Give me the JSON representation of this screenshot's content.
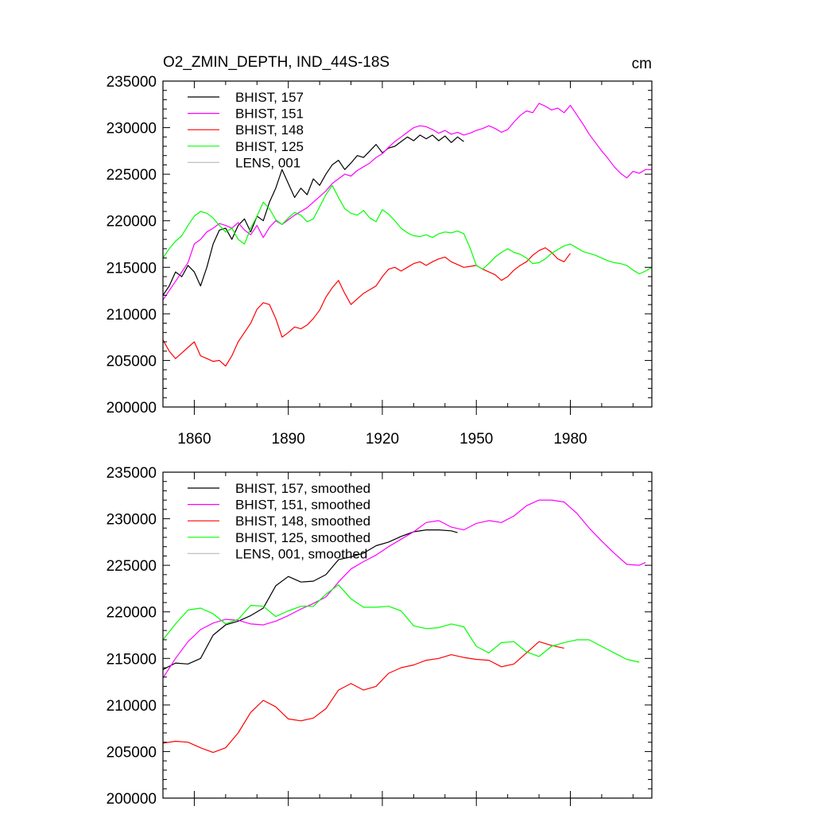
{
  "chart_data": [
    {
      "type": "line",
      "title": "O2_ZMIN_DEPTH, IND_44S-18S",
      "units": "cm",
      "xlim": [
        1850,
        2006
      ],
      "ylim": [
        200000,
        235000
      ],
      "xticks": [
        "1860",
        "1890",
        "1920",
        "1950",
        "1980"
      ],
      "yticks": [
        "235000",
        "230000",
        "225000",
        "220000",
        "215000",
        "210000",
        "205000",
        "200000"
      ],
      "grid": false,
      "legend_position": "top-left",
      "series": [
        {
          "name": "BHIST, 157",
          "color": "#000000",
          "x": [
            1850,
            1852,
            1854,
            1856,
            1858,
            1860,
            1862,
            1864,
            1866,
            1868,
            1870,
            1872,
            1874,
            1876,
            1878,
            1880,
            1882,
            1884,
            1886,
            1888,
            1890,
            1892,
            1894,
            1896,
            1898,
            1900,
            1902,
            1904,
            1906,
            1908,
            1910,
            1912,
            1914,
            1916,
            1918,
            1920,
            1922,
            1924,
            1926,
            1928,
            1930,
            1932,
            1934,
            1936,
            1938,
            1940,
            1942,
            1944,
            1946
          ],
          "y": [
            212000,
            213000,
            214500,
            214000,
            215200,
            214500,
            213000,
            215000,
            217500,
            219000,
            219200,
            218000,
            219500,
            220200,
            218800,
            220500,
            220000,
            222000,
            223500,
            225500,
            224000,
            222500,
            223500,
            222800,
            224500,
            223800,
            225000,
            226000,
            226500,
            225500,
            226200,
            227000,
            226800,
            227500,
            228200,
            227300,
            227800,
            228000,
            228500,
            229000,
            228600,
            229200,
            228800,
            229200,
            228600,
            229100,
            228400,
            229000,
            228500
          ]
        },
        {
          "name": "BHIST, 151",
          "color": "#ff00ff",
          "x": [
            1850,
            1852,
            1854,
            1856,
            1858,
            1860,
            1862,
            1864,
            1866,
            1868,
            1870,
            1872,
            1874,
            1876,
            1878,
            1880,
            1882,
            1884,
            1886,
            1888,
            1890,
            1892,
            1894,
            1896,
            1898,
            1900,
            1902,
            1904,
            1906,
            1908,
            1910,
            1912,
            1914,
            1916,
            1918,
            1920,
            1922,
            1924,
            1926,
            1928,
            1930,
            1932,
            1934,
            1936,
            1938,
            1940,
            1942,
            1944,
            1946,
            1948,
            1950,
            1952,
            1954,
            1956,
            1958,
            1960,
            1962,
            1964,
            1966,
            1968,
            1970,
            1972,
            1974,
            1976,
            1978,
            1980,
            1982,
            1984,
            1986,
            1988,
            1990,
            1992,
            1994,
            1996,
            1998,
            2000,
            2002,
            2004,
            2006
          ],
          "y": [
            211500,
            212500,
            213500,
            214500,
            215500,
            217500,
            218000,
            218800,
            219200,
            219700,
            219500,
            219200,
            219800,
            219000,
            218500,
            219500,
            218200,
            219300,
            220000,
            219600,
            220100,
            220600,
            221000,
            221400,
            222000,
            222600,
            223200,
            224000,
            224500,
            225000,
            224800,
            225400,
            225800,
            226200,
            226800,
            227200,
            227900,
            228500,
            229000,
            229500,
            230000,
            230200,
            230100,
            229800,
            229400,
            229700,
            229300,
            229500,
            229200,
            229400,
            229700,
            229900,
            230200,
            229900,
            229500,
            229800,
            230600,
            231300,
            231800,
            231600,
            232600,
            232300,
            231900,
            232100,
            231600,
            232400,
            231400,
            230400,
            229300,
            228400,
            227500,
            226700,
            225800,
            225100,
            224600,
            225300,
            225100,
            225500,
            225500
          ]
        },
        {
          "name": "BHIST, 148",
          "color": "#ff0000",
          "x": [
            1850,
            1852,
            1854,
            1856,
            1858,
            1860,
            1862,
            1864,
            1866,
            1868,
            1870,
            1872,
            1874,
            1876,
            1878,
            1880,
            1882,
            1884,
            1886,
            1888,
            1890,
            1892,
            1894,
            1896,
            1898,
            1900,
            1902,
            1904,
            1906,
            1908,
            1910,
            1912,
            1914,
            1916,
            1918,
            1920,
            1922,
            1924,
            1926,
            1928,
            1930,
            1932,
            1934,
            1936,
            1938,
            1940,
            1942,
            1944,
            1946,
            1948,
            1950,
            1952,
            1954,
            1956,
            1958,
            1960,
            1962,
            1964,
            1966,
            1968,
            1970,
            1972,
            1974,
            1976,
            1978,
            1980
          ],
          "y": [
            207200,
            206000,
            205200,
            205800,
            206400,
            207000,
            205500,
            205200,
            204900,
            205000,
            204400,
            205500,
            207000,
            208000,
            209000,
            210500,
            211200,
            211000,
            209500,
            207500,
            208000,
            208600,
            208400,
            208800,
            209500,
            210400,
            211800,
            212800,
            213600,
            212200,
            211000,
            211600,
            212200,
            212600,
            213000,
            214000,
            214800,
            215000,
            214600,
            215000,
            215400,
            215600,
            215200,
            215600,
            215900,
            216100,
            215600,
            215300,
            215000,
            215100,
            215200,
            214800,
            214500,
            214200,
            213600,
            214000,
            214700,
            215200,
            215600,
            216300,
            216800,
            217100,
            216600,
            215900,
            215600,
            216500
          ]
        },
        {
          "name": "BHIST, 125",
          "color": "#00ff00",
          "x": [
            1850,
            1852,
            1854,
            1856,
            1858,
            1860,
            1862,
            1864,
            1866,
            1868,
            1870,
            1872,
            1874,
            1876,
            1878,
            1880,
            1882,
            1884,
            1886,
            1888,
            1890,
            1892,
            1894,
            1896,
            1898,
            1900,
            1902,
            1904,
            1906,
            1908,
            1910,
            1912,
            1914,
            1916,
            1918,
            1920,
            1922,
            1924,
            1926,
            1928,
            1930,
            1932,
            1934,
            1936,
            1938,
            1940,
            1942,
            1944,
            1946,
            1948,
            1950,
            1952,
            1954,
            1956,
            1958,
            1960,
            1962,
            1964,
            1966,
            1968,
            1970,
            1972,
            1974,
            1976,
            1978,
            1980,
            1982,
            1984,
            1986,
            1988,
            1990,
            1992,
            1994,
            1996,
            1998,
            2000,
            2002,
            2004,
            2006
          ],
          "y": [
            216000,
            217000,
            217800,
            218400,
            219500,
            220500,
            221000,
            220800,
            220300,
            219500,
            218800,
            219200,
            218000,
            217500,
            219200,
            220500,
            222000,
            221300,
            220100,
            219600,
            220300,
            220900,
            220600,
            219900,
            220200,
            221500,
            222800,
            223800,
            222500,
            221300,
            220800,
            220600,
            221100,
            220300,
            219900,
            221200,
            220700,
            220000,
            219200,
            218700,
            218400,
            218300,
            218500,
            218200,
            218600,
            218800,
            218700,
            218900,
            218600,
            217100,
            215200,
            214800,
            215400,
            216100,
            216600,
            217000,
            216600,
            216400,
            216000,
            215400,
            215500,
            215900,
            216500,
            216900,
            217300,
            217500,
            217100,
            216700,
            216500,
            216300,
            216000,
            215700,
            215500,
            215400,
            215200,
            214700,
            214300,
            214600,
            215000
          ]
        },
        {
          "name": "LENS, 001",
          "color": "#c0c0c0",
          "x": [],
          "y": []
        }
      ]
    },
    {
      "type": "line",
      "title": "",
      "xlim": [
        1850,
        2006
      ],
      "ylim": [
        200000,
        235000
      ],
      "yticks": [
        "235000",
        "230000",
        "225000",
        "220000",
        "215000",
        "210000",
        "205000",
        "200000"
      ],
      "grid": false,
      "legend_position": "top-left",
      "series": [
        {
          "name": "BHIST, 157, smoothed",
          "color": "#000000",
          "x": [
            1850,
            1854,
            1858,
            1862,
            1866,
            1870,
            1874,
            1878,
            1882,
            1886,
            1890,
            1894,
            1898,
            1902,
            1906,
            1910,
            1914,
            1918,
            1922,
            1926,
            1930,
            1934,
            1938,
            1942,
            1944
          ],
          "y": [
            213800,
            214500,
            214400,
            215000,
            217500,
            218600,
            219000,
            219600,
            220400,
            222800,
            223800,
            223200,
            223300,
            224000,
            225600,
            225900,
            226300,
            227100,
            227500,
            228100,
            228600,
            228800,
            228800,
            228700,
            228500
          ]
        },
        {
          "name": "BHIST, 151, smoothed",
          "color": "#ff00ff",
          "x": [
            1850,
            1854,
            1858,
            1862,
            1866,
            1870,
            1874,
            1878,
            1882,
            1886,
            1890,
            1894,
            1898,
            1902,
            1906,
            1910,
            1914,
            1918,
            1922,
            1926,
            1930,
            1934,
            1938,
            1942,
            1946,
            1950,
            1954,
            1958,
            1962,
            1966,
            1970,
            1974,
            1978,
            1982,
            1986,
            1990,
            1994,
            1998,
            2002,
            2004
          ],
          "y": [
            212900,
            215000,
            216800,
            218100,
            218800,
            219200,
            219100,
            218700,
            218600,
            219000,
            219600,
            220300,
            220900,
            221600,
            223200,
            224600,
            225400,
            226100,
            227000,
            227800,
            228600,
            229600,
            229800,
            229100,
            228800,
            229500,
            229800,
            229600,
            230300,
            231400,
            232000,
            232000,
            231800,
            230600,
            229000,
            227600,
            226300,
            225100,
            225000,
            225300
          ]
        },
        {
          "name": "BHIST, 148, smoothed",
          "color": "#ff0000",
          "x": [
            1850,
            1854,
            1858,
            1862,
            1866,
            1870,
            1874,
            1878,
            1882,
            1886,
            1890,
            1894,
            1898,
            1902,
            1906,
            1910,
            1914,
            1918,
            1922,
            1926,
            1930,
            1934,
            1938,
            1942,
            1946,
            1950,
            1954,
            1958,
            1962,
            1966,
            1970,
            1974,
            1978
          ],
          "y": [
            205900,
            206100,
            206000,
            205400,
            204900,
            205400,
            207000,
            209200,
            210500,
            209800,
            208500,
            208300,
            208600,
            209600,
            211600,
            212300,
            211600,
            212000,
            213400,
            214000,
            214300,
            214800,
            215000,
            215400,
            215100,
            214900,
            214800,
            214100,
            214400,
            215600,
            216800,
            216400,
            216100
          ]
        },
        {
          "name": "BHIST, 125, smoothed",
          "color": "#00ff00",
          "x": [
            1850,
            1854,
            1858,
            1862,
            1866,
            1870,
            1874,
            1878,
            1882,
            1886,
            1890,
            1894,
            1898,
            1902,
            1906,
            1910,
            1914,
            1918,
            1922,
            1926,
            1930,
            1934,
            1938,
            1942,
            1946,
            1950,
            1954,
            1958,
            1962,
            1966,
            1970,
            1974,
            1978,
            1982,
            1986,
            1990,
            1994,
            1998,
            2002
          ],
          "y": [
            217000,
            218700,
            220200,
            220400,
            219800,
            218700,
            219200,
            220700,
            220600,
            219500,
            220100,
            220600,
            220600,
            221900,
            222900,
            221400,
            220500,
            220500,
            220600,
            220100,
            218500,
            218200,
            218300,
            218700,
            218400,
            216300,
            215600,
            216700,
            216800,
            215700,
            215200,
            216300,
            216700,
            217000,
            217000,
            216300,
            215600,
            214900,
            214600
          ]
        },
        {
          "name": "LENS, 001, smoothed",
          "color": "#c0c0c0",
          "x": [],
          "y": []
        }
      ]
    }
  ]
}
